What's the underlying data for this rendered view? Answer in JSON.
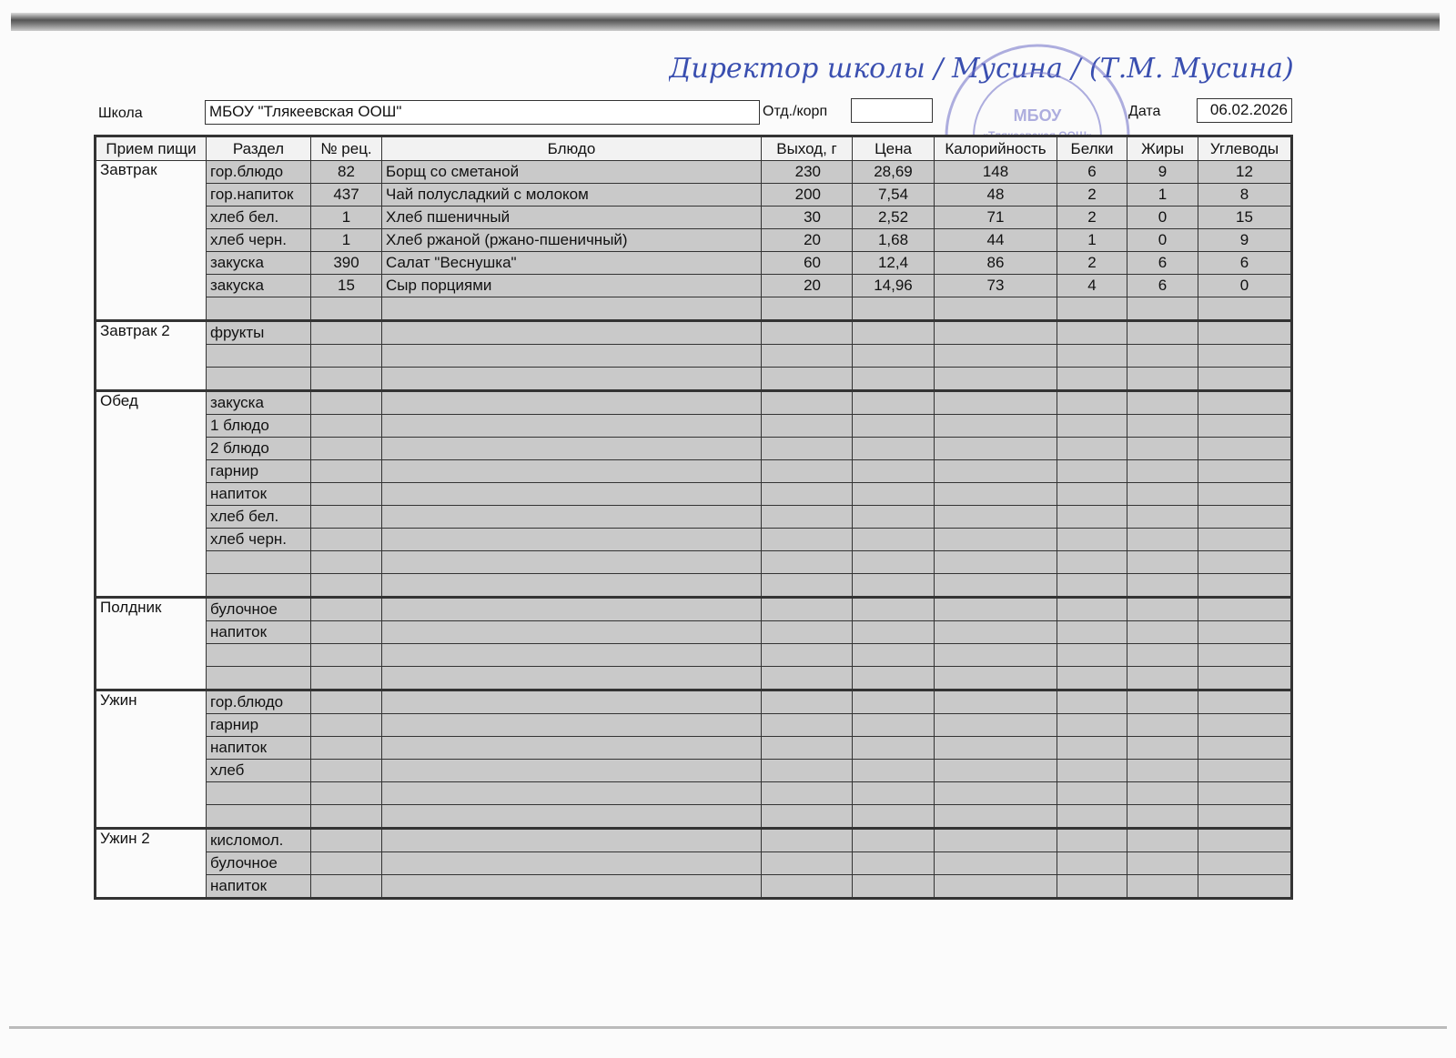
{
  "header": {
    "school_label": "Школа",
    "school_value": "МБОУ \"Тлякеевская ООШ\"",
    "dept_label": "Отд./корп",
    "dept_value": "",
    "date_label": "Дата",
    "date_value": "06.02.2026"
  },
  "signature": {
    "text": "Директор школы / Мусина / (Т.М. Мусина)"
  },
  "stamp": {
    "center": "МБОУ",
    "name": "«Тлякеевская ООШ»"
  },
  "columns": [
    "Прием пищи",
    "Раздел",
    "№ рец.",
    "Блюдо",
    "Выход, г",
    "Цена",
    "Калорийность",
    "Белки",
    "Жиры",
    "Углеводы"
  ],
  "meals": [
    {
      "name": "Завтрак",
      "rows": [
        [
          "гор.блюдо",
          "82",
          "Борщ со сметаной",
          "230",
          "28,69",
          "148",
          "6",
          "9",
          "12"
        ],
        [
          "гор.напиток",
          "437",
          "Чай полусладкий с молоком",
          "200",
          "7,54",
          "48",
          "2",
          "1",
          "8"
        ],
        [
          "хлеб бел.",
          "1",
          "Хлеб пшеничный",
          "30",
          "2,52",
          "71",
          "2",
          "0",
          "15"
        ],
        [
          "хлеб черн.",
          "1",
          "Хлеб ржаной (ржано-пшеничный)",
          "20",
          "1,68",
          "44",
          "1",
          "0",
          "9"
        ],
        [
          "закуска",
          "390",
          "Салат \"Веснушка\"",
          "60",
          "12,4",
          "86",
          "2",
          "6",
          "6"
        ],
        [
          "закуска",
          "15",
          "Сыр порциями",
          "20",
          "14,96",
          "73",
          "4",
          "6",
          "0"
        ],
        [
          "",
          "",
          "",
          "",
          "",
          "",
          "",
          "",
          ""
        ]
      ]
    },
    {
      "name": "Завтрак 2",
      "rows": [
        [
          "фрукты",
          "",
          "",
          "",
          "",
          "",
          "",
          "",
          ""
        ],
        [
          "",
          "",
          "",
          "",
          "",
          "",
          "",
          "",
          ""
        ],
        [
          "",
          "",
          "",
          "",
          "",
          "",
          "",
          "",
          ""
        ]
      ]
    },
    {
      "name": "Обед",
      "rows": [
        [
          "закуска",
          "",
          "",
          "",
          "",
          "",
          "",
          "",
          ""
        ],
        [
          "1 блюдо",
          "",
          "",
          "",
          "",
          "",
          "",
          "",
          ""
        ],
        [
          "2 блюдо",
          "",
          "",
          "",
          "",
          "",
          "",
          "",
          ""
        ],
        [
          "гарнир",
          "",
          "",
          "",
          "",
          "",
          "",
          "",
          ""
        ],
        [
          "напиток",
          "",
          "",
          "",
          "",
          "",
          "",
          "",
          ""
        ],
        [
          "хлеб бел.",
          "",
          "",
          "",
          "",
          "",
          "",
          "",
          ""
        ],
        [
          "хлеб черн.",
          "",
          "",
          "",
          "",
          "",
          "",
          "",
          ""
        ],
        [
          "",
          "",
          "",
          "",
          "",
          "",
          "",
          "",
          ""
        ],
        [
          "",
          "",
          "",
          "",
          "",
          "",
          "",
          "",
          ""
        ]
      ]
    },
    {
      "name": "Полдник",
      "rows": [
        [
          "булочное",
          "",
          "",
          "",
          "",
          "",
          "",
          "",
          ""
        ],
        [
          "напиток",
          "",
          "",
          "",
          "",
          "",
          "",
          "",
          ""
        ],
        [
          "",
          "",
          "",
          "",
          "",
          "",
          "",
          "",
          ""
        ],
        [
          "",
          "",
          "",
          "",
          "",
          "",
          "",
          "",
          ""
        ]
      ]
    },
    {
      "name": "Ужин",
      "rows": [
        [
          "гор.блюдо",
          "",
          "",
          "",
          "",
          "",
          "",
          "",
          ""
        ],
        [
          "гарнир",
          "",
          "",
          "",
          "",
          "",
          "",
          "",
          ""
        ],
        [
          "напиток",
          "",
          "",
          "",
          "",
          "",
          "",
          "",
          ""
        ],
        [
          "хлеб",
          "",
          "",
          "",
          "",
          "",
          "",
          "",
          ""
        ],
        [
          "",
          "",
          "",
          "",
          "",
          "",
          "",
          "",
          ""
        ],
        [
          "",
          "",
          "",
          "",
          "",
          "",
          "",
          "",
          ""
        ]
      ]
    },
    {
      "name": "Ужин 2",
      "rows": [
        [
          "кисломол.",
          "",
          "",
          "",
          "",
          "",
          "",
          "",
          ""
        ],
        [
          "булочное",
          "",
          "",
          "",
          "",
          "",
          "",
          "",
          ""
        ],
        [
          "напиток",
          "",
          "",
          "",
          "",
          "",
          "",
          "",
          ""
        ]
      ]
    }
  ]
}
